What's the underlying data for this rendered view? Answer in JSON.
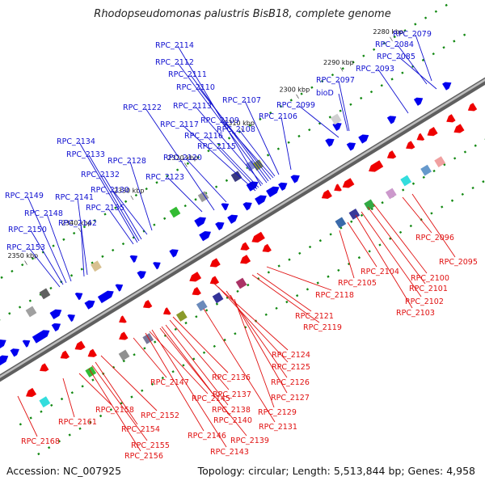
{
  "title": "Rhodopseudomonas palustris BisB18, complete genome",
  "footer": {
    "accession": "Accession: NC_007925",
    "summary": "Topology: circular; Length: 5,513,844 bp; Genes: 4,958"
  },
  "colors": {
    "forward_label": "#1010d0",
    "reverse_label": "#e01010",
    "forward_gene": "#0000ee",
    "reverse_gene": "#ee0000",
    "tick": "#118811",
    "backbone": "#808080"
  },
  "kbp_ticks": [
    "2280 kbp",
    "2290 kbp",
    "2300 kbp",
    "2310 kbp",
    "2320 kbp",
    "2330 kbp",
    "2340 kbp",
    "2350 kbp"
  ],
  "forward_labels": [
    "RPC_2079",
    "RPC_2084",
    "RPC_2085",
    "RPC_2093",
    "RPC_2097",
    "bioD",
    "RPC_2099",
    "RPC_2106",
    "RPC_2107",
    "RPC_2108",
    "RPC_2109",
    "RPC_2110",
    "RPC_2111",
    "RPC_2112",
    "RPC_2113",
    "RPC_2114",
    "RPC_2115",
    "RPC_2116",
    "RPC_2117",
    "RPC_2120",
    "RPC_2122",
    "RPC_2123",
    "RPC_2128",
    "RPC_2130",
    "RPC_2132",
    "RPC_2133",
    "RPC_2134",
    "RPC_2135",
    "RPC_2141",
    "RPC_2142",
    "RPC_2148",
    "RPC_2149",
    "RPC_2150",
    "RPC_2153"
  ],
  "reverse_labels": [
    "RPC_2095",
    "RPC_2096",
    "RPC_2100",
    "RPC_2101",
    "RPC_2102",
    "RPC_2103",
    "RPC_2104",
    "RPC_2105",
    "RPC_2118",
    "RPC_2119",
    "RPC_2121",
    "RPC_2124",
    "RPC_2125",
    "RPC_2126",
    "RPC_2127",
    "RPC_2129",
    "RPC_2131",
    "RPC_2136",
    "RPC_2137",
    "RPC_2138",
    "RPC_2139",
    "RPC_2140",
    "RPC_2143",
    "RPC_2145",
    "RPC_2146",
    "RPC_2147",
    "RPC_2152",
    "RPC_2154",
    "RPC_2155",
    "RPC_2156",
    "RPC_2158",
    "RPC_2161",
    "RPC_2168"
  ]
}
